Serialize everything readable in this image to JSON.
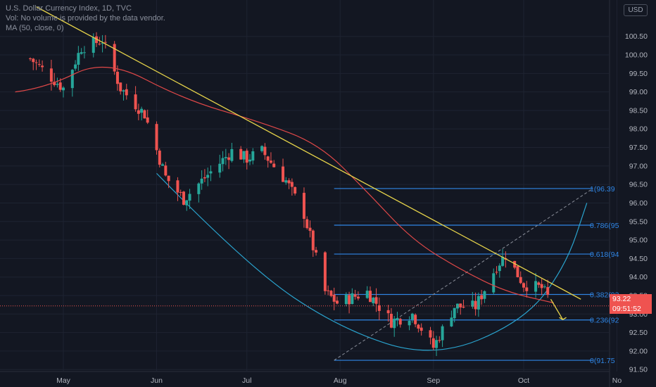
{
  "header": {
    "title": "U.S. Dollar Currency Index, 1D, TVC",
    "vol_line": "Vol: No volume is provided by the data vendor.",
    "ma_line": "MA (50, close, 0)"
  },
  "currency_badge": "USD",
  "last_price": {
    "value": "93.22",
    "countdown": "09:51:52"
  },
  "colors": {
    "background": "#131722",
    "up": "#26a69a",
    "down": "#ef5350",
    "ma": "#e04848",
    "trendline": "#e6d34a",
    "fib": "#2f86e6",
    "arc": "#2aa4cf",
    "grid": "#1e2331"
  },
  "chart_data": {
    "type": "candlestick",
    "title": "U.S. Dollar Currency Index, 1D, TVC",
    "ylim": [
      91.2,
      101.35
    ],
    "grid": true,
    "y_ticks": [
      "100.50",
      "100.00",
      "99.50",
      "99.00",
      "98.50",
      "98.00",
      "97.50",
      "97.00",
      "96.50",
      "96.00",
      "95.50",
      "95.00",
      "94.50",
      "94.00",
      "93.50",
      "93.00",
      "92.50",
      "92.00",
      "91.50"
    ],
    "x_ticks": [
      "May",
      "Jun",
      "Jul",
      "Aug",
      "Sep",
      "Oct",
      "No"
    ],
    "close_path": [
      [
        "2020-04-20",
        99.9
      ],
      [
        "2020-05-01",
        99.1
      ],
      [
        "2020-05-07",
        100.2
      ],
      [
        "2020-05-14",
        100.4
      ],
      [
        "2020-05-20",
        99.1
      ],
      [
        "2020-05-28",
        98.4
      ],
      [
        "2020-06-04",
        96.7
      ],
      [
        "2020-06-10",
        96.1
      ],
      [
        "2020-06-16",
        96.6
      ],
      [
        "2020-06-26",
        97.4
      ],
      [
        "2020-07-01",
        97.2
      ],
      [
        "2020-07-06",
        97.4
      ],
      [
        "2020-07-14",
        96.6
      ],
      [
        "2020-07-20",
        95.7
      ],
      [
        "2020-07-27",
        93.6
      ],
      [
        "2020-07-31",
        93.3
      ],
      [
        "2020-08-10",
        93.6
      ],
      [
        "2020-08-18",
        92.8
      ],
      [
        "2020-08-25",
        93.0
      ],
      [
        "2020-09-01",
        92.1
      ],
      [
        "2020-09-08",
        93.2
      ],
      [
        "2020-09-15",
        93.2
      ],
      [
        "2020-09-22",
        94.3
      ],
      [
        "2020-09-25",
        94.6
      ],
      [
        "2020-10-01",
        93.8
      ],
      [
        "2020-10-07",
        93.7
      ],
      [
        "2020-10-11",
        93.22
      ]
    ],
    "moving_average": {
      "name": "MA (50, close, 0)",
      "points": [
        [
          "2020-04-15",
          99.0
        ],
        [
          "2020-04-25",
          99.1
        ],
        [
          "2020-05-15",
          99.9
        ],
        [
          "2020-06-10",
          98.8
        ],
        [
          "2020-07-05",
          98.2
        ],
        [
          "2020-07-25",
          97.6
        ],
        [
          "2020-08-10",
          96.3
        ],
        [
          "2020-08-25",
          95.0
        ],
        [
          "2020-09-10",
          94.2
        ],
        [
          "2020-09-25",
          93.6
        ],
        [
          "2020-10-11",
          93.3
        ]
      ]
    },
    "trendline": [
      [
        "2020-04-22",
        101.3
      ],
      [
        "2020-10-20",
        93.4
      ]
    ],
    "fib_retracement": {
      "start": [
        "2020-07-30",
        91.75
      ],
      "end": [
        "2020-10-24",
        96.39
      ],
      "levels": [
        {
          "ratio": "1",
          "price": 96.39,
          "label": "1(96.39"
        },
        {
          "ratio": "0.786",
          "price": 95.4,
          "label": "0.786(95"
        },
        {
          "ratio": "0.618",
          "price": 94.62,
          "label": "0.618(94"
        },
        {
          "ratio": "0.382",
          "price": 93.53,
          "label": "0.382(93"
        },
        {
          "ratio": "0.236",
          "price": 92.84,
          "label": "0.236(92"
        },
        {
          "ratio": "0",
          "price": 91.75,
          "label": "0(91.75"
        }
      ]
    },
    "arc": [
      [
        "2020-06-01",
        96.8
      ],
      [
        "2020-07-01",
        94.3
      ],
      [
        "2020-08-01",
        92.6
      ],
      [
        "2020-09-01",
        91.8
      ],
      [
        "2020-10-01",
        92.8
      ],
      [
        "2020-10-15",
        94.3
      ],
      [
        "2020-10-22",
        96.0
      ]
    ],
    "projection_arrow": [
      [
        "2020-10-10",
        93.4
      ],
      [
        "2020-10-14",
        92.85
      ]
    ]
  }
}
